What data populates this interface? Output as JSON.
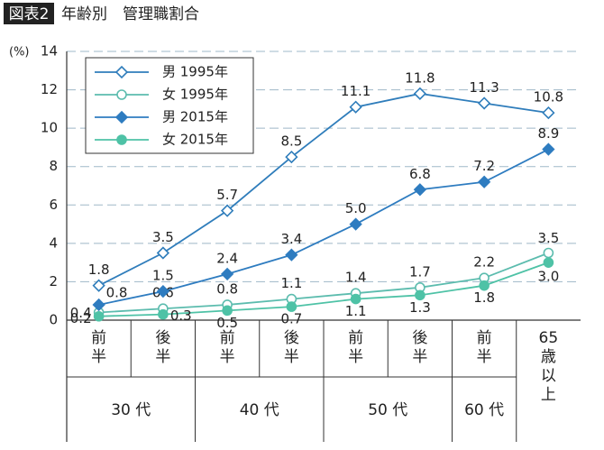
{
  "chart_data": {
    "type": "line",
    "title_badge": "図表2",
    "title": "年齢別　管理職割合",
    "y_unit": "(%)",
    "categories": [
      "前半",
      "後半",
      "前半",
      "後半",
      "前半",
      "後半",
      "前半",
      "65歳以上"
    ],
    "groups": [
      "30 代",
      "40 代",
      "50 代",
      "60 代"
    ],
    "ylim": [
      0,
      14
    ],
    "yticks": [
      0,
      2,
      4,
      6,
      8,
      10,
      12,
      14
    ],
    "grid": true,
    "series": [
      {
        "name": "男 1995年",
        "color": "#2f7dbb",
        "marker": "open-diamond",
        "values": [
          1.8,
          3.5,
          5.7,
          8.5,
          11.1,
          11.8,
          11.3,
          10.8
        ],
        "value_labels": [
          "1.8",
          "3.5",
          "5.7",
          "8.5",
          "11.1",
          "11.8",
          "11.3",
          "10.8"
        ]
      },
      {
        "name": "女 1995年",
        "color": "#5cbcae",
        "marker": "open-circle",
        "values": [
          0.4,
          0.6,
          0.8,
          1.1,
          1.4,
          1.7,
          2.2,
          3.5
        ],
        "value_labels": [
          "0.4",
          "0.6",
          "0.8",
          "1.1",
          "1.4",
          "1.7",
          "2.2",
          "3.5"
        ]
      },
      {
        "name": "男 2015年",
        "color": "#2e7cc0",
        "marker": "filled-diamond",
        "values": [
          0.8,
          1.5,
          2.4,
          3.4,
          5.0,
          6.8,
          7.2,
          8.9
        ],
        "value_labels": [
          "0.8",
          "1.5",
          "2.4",
          "3.4",
          "5.0",
          "6.8",
          "7.2",
          "8.9"
        ]
      },
      {
        "name": "女 2015年",
        "color": "#4ec2a6",
        "marker": "filled-circle",
        "values": [
          0.2,
          0.3,
          0.5,
          0.7,
          1.1,
          1.3,
          1.8,
          3.0
        ],
        "value_labels": [
          "0.2",
          "0.3",
          "0.5",
          "0.7",
          "1.1",
          "1.3",
          "1.8",
          "3.0"
        ]
      }
    ]
  }
}
